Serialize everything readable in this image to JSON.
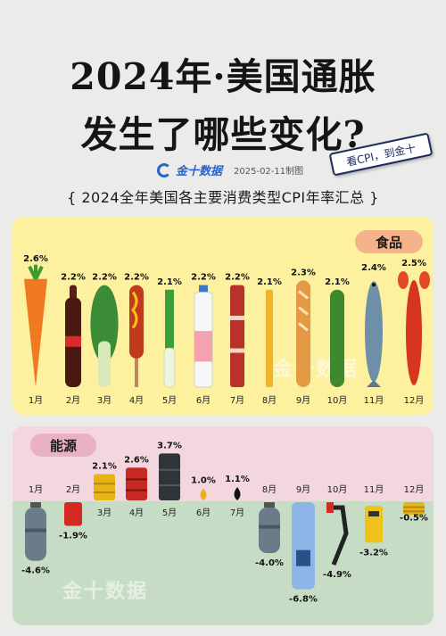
{
  "header": {
    "title_line1": "2024年·美国通胀",
    "title_line2": "发生了哪些变化?",
    "stamp": "看CPI，到金十",
    "brand": "金十数据",
    "date": "2025-02-11制图",
    "subtitle": "{ 2024全年美国各主要消费类型CPI年率汇总 }",
    "watermark": "金十数据"
  },
  "colors": {
    "food_panel": "#fdf1a0",
    "food_tag": "#f4b38a",
    "energy_top": "#f4d6df",
    "energy_bottom": "#c6dcc4",
    "energy_tag": "#e8b2c4",
    "brand": "#2a63c9"
  },
  "chart_data": [
    {
      "type": "bar",
      "title": "食品",
      "categories": [
        "1月",
        "2月",
        "3月",
        "4月",
        "5月",
        "6月",
        "7月",
        "8月",
        "9月",
        "10月",
        "11月",
        "12月"
      ],
      "values": [
        2.6,
        2.2,
        2.2,
        2.2,
        2.1,
        2.2,
        2.2,
        2.1,
        2.3,
        2.1,
        2.4,
        2.5
      ],
      "value_labels": [
        "2.6%",
        "2.2%",
        "2.2%",
        "2.2%",
        "2.1%",
        "2.2%",
        "2.2%",
        "2.1%",
        "2.3%",
        "2.1%",
        "2.4%",
        "2.5%"
      ],
      "icons": [
        "carrot-icon",
        "cola-bottle-icon",
        "bok-choy-icon",
        "corn-dog-icon",
        "green-onion-icon",
        "milk-bottle-icon",
        "bacon-icon",
        "french-fry-icon",
        "baguette-icon",
        "cucumber-icon",
        "fish-icon",
        "lobster-icon"
      ]
    },
    {
      "type": "bar",
      "title": "能源",
      "categories": [
        "1月",
        "2月",
        "3月",
        "4月",
        "5月",
        "6月",
        "7月",
        "8月",
        "9月",
        "10月",
        "11月",
        "12月"
      ],
      "values": [
        -4.6,
        -1.9,
        2.1,
        2.6,
        3.7,
        1.0,
        1.1,
        -4.0,
        -6.8,
        -4.9,
        -3.2,
        -0.5
      ],
      "value_labels": [
        "-4.6%",
        "-1.9%",
        "2.1%",
        "2.6%",
        "3.7%",
        "1.0%",
        "1.1%",
        "-4.0%",
        "-6.8%",
        "-4.9%",
        "-3.2%",
        "-0.5%"
      ],
      "icons": [
        "gas-cylinder-icon",
        "fuel-can-icon",
        "yellow-barrel-icon",
        "red-barrel-icon",
        "black-barrel-icon",
        "yellow-drop-icon",
        "black-drop-icon",
        "gas-cylinder-icon",
        "gas-pump-icon",
        "fuel-nozzle-icon",
        "ev-charger-icon",
        "yellow-barrel-icon"
      ]
    }
  ]
}
